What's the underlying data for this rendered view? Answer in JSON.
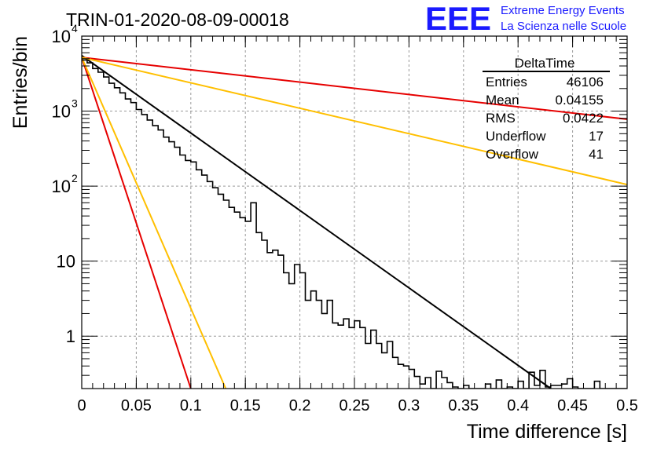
{
  "chart_data": {
    "type": "line",
    "title": "TRIN-01-2020-08-09-00018",
    "xlabel": "Time difference [s]",
    "ylabel": "Entries/bin",
    "xlim": [
      0,
      0.5
    ],
    "ylim": [
      0.2,
      10000
    ],
    "y_scale": "log",
    "grid": true,
    "x_ticks": [
      "0",
      "0.05",
      "0.1",
      "0.15",
      "0.2",
      "0.25",
      "0.3",
      "0.35",
      "0.4",
      "0.45",
      "0.5"
    ],
    "y_ticks": [
      {
        "value": 1,
        "label": "1"
      },
      {
        "value": 10,
        "label": "10"
      },
      {
        "value": 100,
        "label": "10",
        "exp": "2"
      },
      {
        "value": 1000,
        "label": "10",
        "exp": "3"
      },
      {
        "value": 10000,
        "label": "10",
        "exp": "4"
      }
    ],
    "histogram": {
      "name": "DeltaTime",
      "bin_width": 0.005,
      "values": [
        4800,
        4400,
        3700,
        3300,
        2850,
        2350,
        2050,
        1750,
        1450,
        1300,
        1050,
        900,
        760,
        640,
        560,
        450,
        390,
        330,
        260,
        220,
        210,
        165,
        140,
        115,
        95,
        78,
        65,
        52,
        45,
        38,
        34,
        60,
        24,
        19,
        13,
        14,
        12,
        7,
        5,
        9,
        7,
        3,
        4,
        3,
        2,
        3,
        1.5,
        1.4,
        1.7,
        1.3,
        1.6,
        1.3,
        0.8,
        1.2,
        0.8,
        0.6,
        0.85,
        0.52,
        0.42,
        0.4,
        0.36,
        0.29,
        0.23,
        0.28,
        0.2,
        0.34,
        0.28,
        0.24,
        0.21,
        0.2,
        0.22,
        0.2,
        0.2,
        0.2,
        0.23,
        0.2,
        0.26,
        0.2,
        0.21,
        0.2,
        0.25,
        0.2,
        0.33,
        0.22,
        0.35,
        0.21,
        0.22,
        0.22,
        0.23,
        0.27,
        0.21,
        0.2,
        0.2,
        0.2,
        0.25,
        0.2,
        0.2,
        0.2,
        0.2,
        0.2
      ]
    },
    "fit_lines": [
      {
        "color": "#000000",
        "points": [
          [
            0,
            5500
          ],
          [
            0.43,
            0.2
          ]
        ]
      },
      {
        "color": "#e60000",
        "points": [
          [
            0,
            5200
          ],
          [
            0.1,
            0.2
          ]
        ]
      },
      {
        "color": "#e60000",
        "points": [
          [
            0,
            5200
          ],
          [
            0.5,
            780
          ]
        ]
      },
      {
        "color": "#ffbf00",
        "points": [
          [
            0,
            5200
          ],
          [
            0.132,
            0.2
          ]
        ]
      },
      {
        "color": "#ffbf00",
        "points": [
          [
            0,
            5200
          ],
          [
            0.5,
            105
          ]
        ]
      }
    ],
    "stats": {
      "name": "DeltaTime",
      "rows": [
        {
          "label": "Entries",
          "value": "46106"
        },
        {
          "label": "Mean",
          "value": "0.04155"
        },
        {
          "label": "RMS",
          "value": "0.0422"
        },
        {
          "label": "Underflow",
          "value": "17"
        },
        {
          "label": "Overflow",
          "value": "41"
        }
      ]
    }
  },
  "logo": {
    "mark": "EEE",
    "line1": "Extreme Energy Events",
    "line2": "La Scienza nelle Scuole"
  }
}
